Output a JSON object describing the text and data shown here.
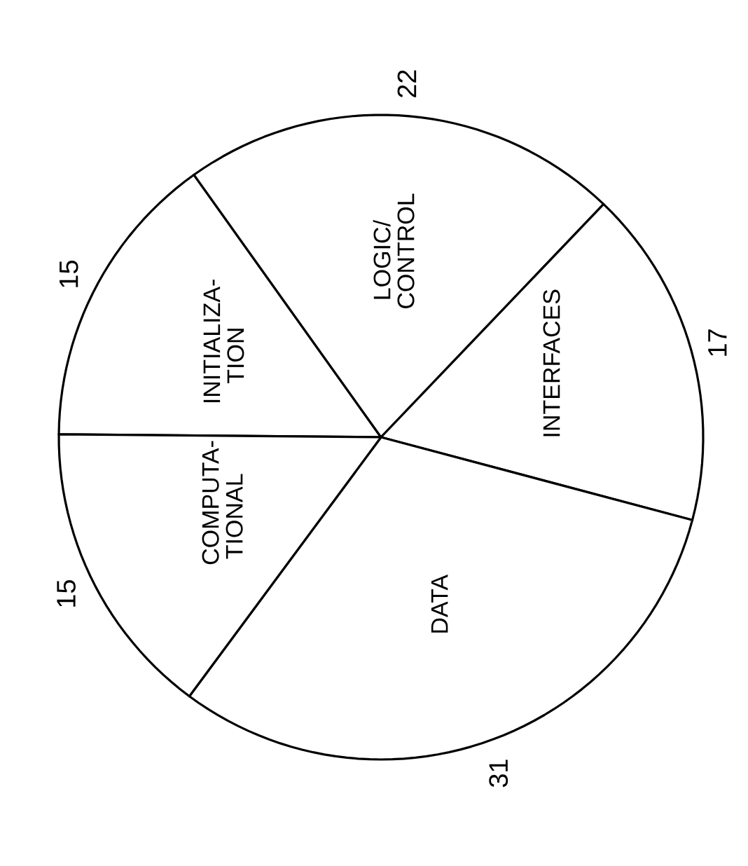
{
  "chart_data": {
    "type": "pie",
    "categories": [
      "INITIALIZA-TION",
      "LOGIC/ CONTROL",
      "INTERFACES",
      "DATA",
      "COMPUTA-TIONAL"
    ],
    "values": [
      15,
      22,
      17,
      31,
      15
    ],
    "colors": [
      "#ffffff",
      "#ffffff",
      "#ffffff",
      "#ffffff",
      "#ffffff"
    ],
    "data_labels": true
  }
}
